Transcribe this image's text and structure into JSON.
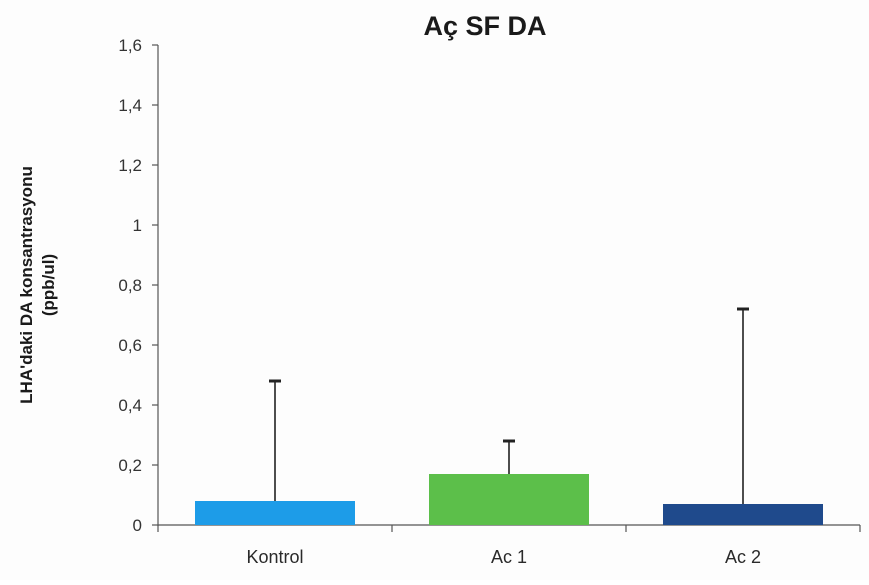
{
  "chart_data": {
    "type": "bar",
    "title": "Aç SF DA",
    "ylabel_lines": [
      "LHA'daki DA konsantrasyonu",
      "(ppb/ul)"
    ],
    "xlabel": "",
    "categories": [
      "Kontrol",
      "Ac 1",
      "Ac 2"
    ],
    "values": [
      0.08,
      0.17,
      0.07
    ],
    "error_upper": [
      0.48,
      0.28,
      0.72
    ],
    "colors": [
      "#1d9ce8",
      "#5cbf4a",
      "#1f4a8c"
    ],
    "ylim": [
      0,
      1.6
    ],
    "yticks": [
      "0",
      "0,2",
      "0,4",
      "0,6",
      "0,8",
      "1",
      "1,2",
      "1,4",
      "1,6"
    ],
    "grid": false,
    "legend": "none"
  }
}
